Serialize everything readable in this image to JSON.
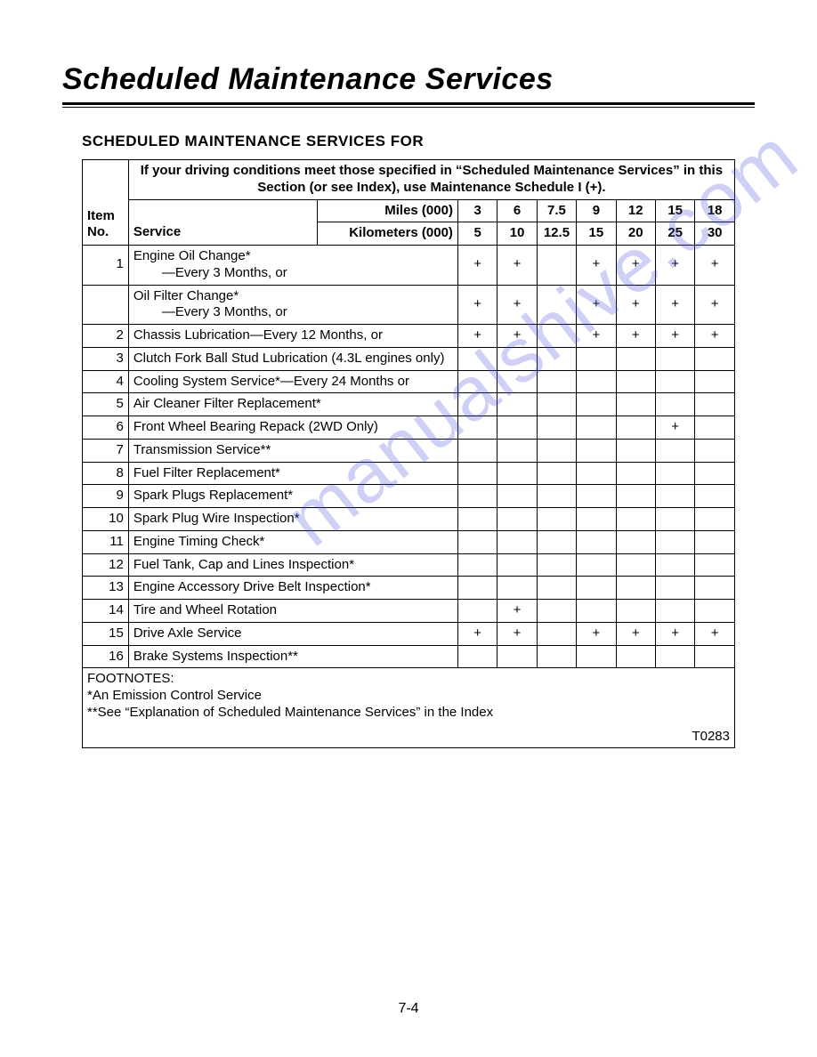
{
  "page": {
    "main_title": "Scheduled Maintenance Services",
    "sub_title": "SCHEDULED MAINTENANCE SERVICES FOR",
    "page_number": "7-4",
    "watermark": "manualshive.com"
  },
  "table": {
    "banner": "If your driving conditions meet those specified in “Scheduled Maintenance Services” in this Section (or see Index), use Maintenance Schedule I (+).",
    "header": {
      "item_label_1": "Item",
      "item_label_2": "No.",
      "service_label": "Service",
      "miles_label": "Miles (000)",
      "km_label": "Kilometers (000)",
      "miles_values": [
        "3",
        "6",
        "7.5",
        "9",
        "12",
        "15",
        "18"
      ],
      "km_values": [
        "5",
        "10",
        "12.5",
        "15",
        "20",
        "25",
        "30"
      ]
    },
    "rows": [
      {
        "no": "1",
        "service_lines": [
          "Engine Oil Change*",
          "—Every 3 Months, or"
        ],
        "marks": [
          "+",
          "+",
          "",
          "+",
          "+",
          "+",
          "+"
        ]
      },
      {
        "no": "",
        "service_lines": [
          "Oil Filter Change*",
          "—Every 3 Months, or"
        ],
        "marks": [
          "+",
          "+",
          "",
          "+",
          "+",
          "+",
          "+"
        ]
      },
      {
        "no": "2",
        "service_lines": [
          "Chassis Lubrication—Every 12 Months, or"
        ],
        "marks": [
          "+",
          "+",
          "",
          "+",
          "+",
          "+",
          "+"
        ]
      },
      {
        "no": "3",
        "service_lines": [
          "Clutch Fork Ball Stud Lubrication (4.3L engines only)"
        ],
        "marks": [
          "",
          "",
          "",
          "",
          "",
          "",
          ""
        ]
      },
      {
        "no": "4",
        "service_lines": [
          "Cooling System Service*—Every 24 Months or"
        ],
        "marks": [
          "",
          "",
          "",
          "",
          "",
          "",
          ""
        ]
      },
      {
        "no": "5",
        "service_lines": [
          "Air Cleaner Filter Replacement*"
        ],
        "marks": [
          "",
          "",
          "",
          "",
          "",
          "",
          ""
        ]
      },
      {
        "no": "6",
        "service_lines": [
          "Front Wheel Bearing Repack (2WD Only)"
        ],
        "marks": [
          "",
          "",
          "",
          "",
          "",
          "+",
          ""
        ]
      },
      {
        "no": "7",
        "service_lines": [
          "Transmission Service**"
        ],
        "marks": [
          "",
          "",
          "",
          "",
          "",
          "",
          ""
        ]
      },
      {
        "no": "8",
        "service_lines": [
          "Fuel Filter Replacement*"
        ],
        "marks": [
          "",
          "",
          "",
          "",
          "",
          "",
          ""
        ]
      },
      {
        "no": "9",
        "service_lines": [
          "Spark Plugs Replacement*"
        ],
        "marks": [
          "",
          "",
          "",
          "",
          "",
          "",
          ""
        ]
      },
      {
        "no": "10",
        "service_lines": [
          "Spark Plug Wire Inspection*"
        ],
        "marks": [
          "",
          "",
          "",
          "",
          "",
          "",
          ""
        ]
      },
      {
        "no": "11",
        "service_lines": [
          "Engine Timing Check*"
        ],
        "marks": [
          "",
          "",
          "",
          "",
          "",
          "",
          ""
        ]
      },
      {
        "no": "12",
        "service_lines": [
          "Fuel Tank, Cap and Lines Inspection*"
        ],
        "marks": [
          "",
          "",
          "",
          "",
          "",
          "",
          ""
        ]
      },
      {
        "no": "13",
        "service_lines": [
          "Engine Accessory Drive Belt Inspection*"
        ],
        "marks": [
          "",
          "",
          "",
          "",
          "",
          "",
          ""
        ]
      },
      {
        "no": "14",
        "service_lines": [
          "Tire and Wheel Rotation"
        ],
        "marks": [
          "",
          "+",
          "",
          "",
          "",
          "",
          ""
        ]
      },
      {
        "no": "15",
        "service_lines": [
          "Drive Axle Service"
        ],
        "marks": [
          "+",
          "+",
          "",
          "+",
          "+",
          "+",
          "+"
        ]
      },
      {
        "no": "16",
        "service_lines": [
          "Brake Systems Inspection**"
        ],
        "marks": [
          "",
          "",
          "",
          "",
          "",
          "",
          ""
        ]
      }
    ],
    "footnotes": {
      "title": "FOOTNOTES:",
      "line1": "*An Emission Control Service",
      "line2": "**See “Explanation of Scheduled Maintenance Services” in the Index",
      "code": "T0283"
    }
  },
  "style": {
    "text_color": "#000000",
    "background": "#ffffff",
    "watermark_color": "rgba(80,90,220,0.28)"
  }
}
